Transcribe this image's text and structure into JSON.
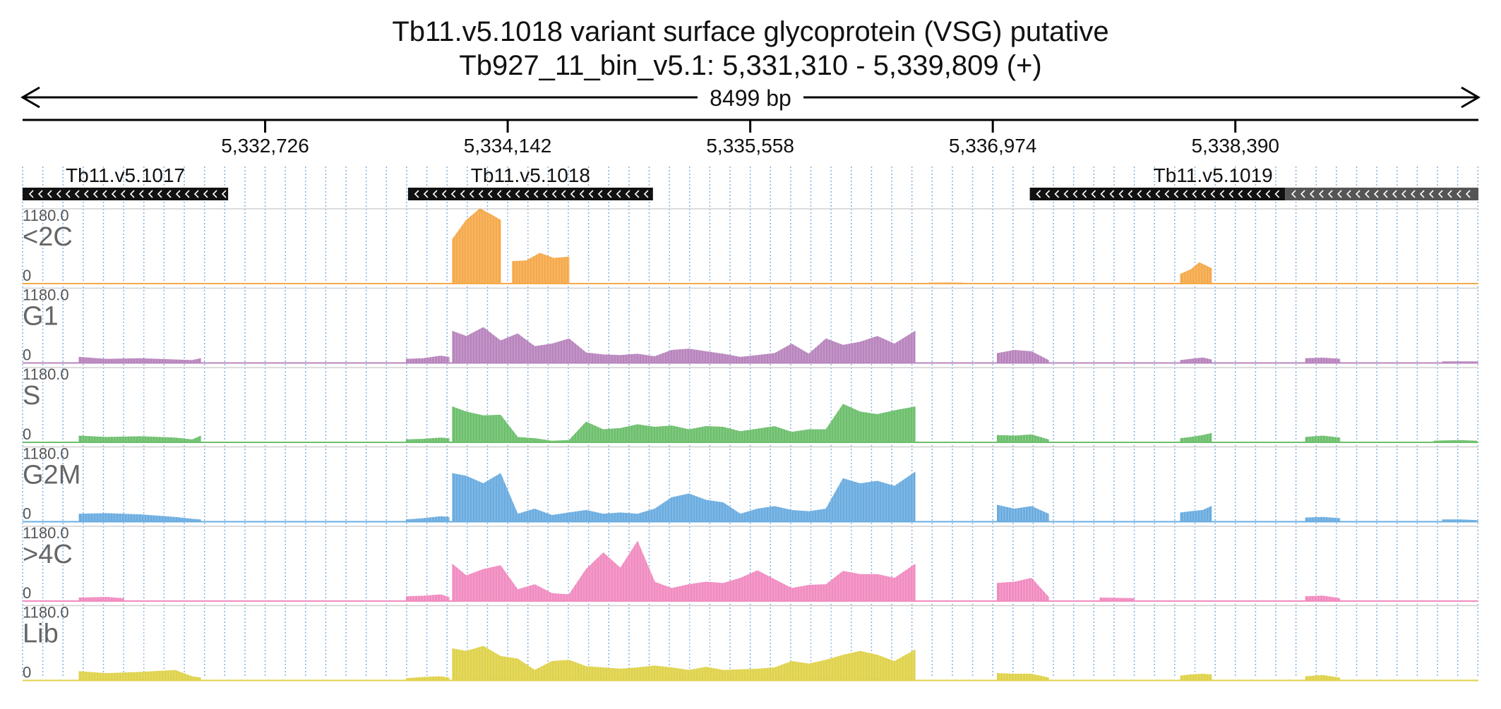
{
  "chart_data": {
    "type": "area",
    "title": "Tb11.v5.1018  variant surface glycoprotein (VSG)  putative",
    "subtitle": "Tb927_11_bin_v5.1: 5,331,310 - 5,339,809 (+)",
    "span_label": "8499 bp",
    "x_range": [
      5331310,
      5339809
    ],
    "x_ticks": [
      5332726,
      5334142,
      5335558,
      5336974,
      5338390
    ],
    "x_tick_labels": [
      "5,332,726",
      "5,334,142",
      "5,335,558",
      "5,336,974",
      "5,338,390"
    ],
    "genes": [
      {
        "name": "Tb11.v5.1017",
        "start": 5331310,
        "end": 5332510,
        "strand": "-"
      },
      {
        "name": "Tb11.v5.1018",
        "start": 5333560,
        "end": 5334990,
        "strand": "-"
      },
      {
        "name": "Tb11.v5.1019",
        "start": 5337190,
        "end": 5338680,
        "strand": "-"
      },
      {
        "name": "",
        "start": 5338680,
        "end": 5339809,
        "strand": "-"
      }
    ],
    "tracks": [
      {
        "name": "<2C",
        "ymax_label": "1180.0",
        "ymin_label": "0",
        "ylim": [
          0,
          1180
        ],
        "color": "#f5a94a",
        "segments": [
          {
            "x": [
              5333820,
              5333900,
              5333980,
              5334050,
              5334100
            ],
            "y": [
              700,
              1000,
              1180,
              1080,
              1000
            ]
          },
          {
            "x": [
              5334110,
              5334170,
              5334250,
              5334320,
              5334400
            ],
            "y": [
              0,
              0,
              0,
              0,
              0
            ]
          },
          {
            "x": [
              5334170,
              5334250,
              5334330,
              5334410,
              5334500
            ],
            "y": [
              350,
              360,
              480,
              400,
              420
            ]
          },
          {
            "x": [
              5336600,
              5336700,
              5336800
            ],
            "y": [
              10,
              12,
              10
            ]
          },
          {
            "x": [
              5338070,
              5338130,
              5338180,
              5338250
            ],
            "y": [
              150,
              220,
              330,
              240
            ]
          }
        ]
      },
      {
        "name": "G1",
        "ymax_label": "1180.0",
        "ymin_label": "0",
        "ylim": [
          0,
          1180
        ],
        "color": "#b884bd",
        "segments": [
          {
            "x": [
              5331640,
              5331800,
              5332000,
              5332200,
              5332300,
              5332350
            ],
            "y": [
              90,
              60,
              70,
              50,
              40,
              70
            ]
          },
          {
            "x": [
              5333550,
              5333650,
              5333750,
              5333800
            ],
            "y": [
              60,
              70,
              110,
              90
            ]
          },
          {
            "x": [
              5333820,
              5333900,
              5334000,
              5334100,
              5334200,
              5334300,
              5334400,
              5334500,
              5334600,
              5334700,
              5334800,
              5334900,
              5335000,
              5335100,
              5335200,
              5335300,
              5335400,
              5335500,
              5335600,
              5335700,
              5335800,
              5335900,
              5336000,
              5336100,
              5336200,
              5336300,
              5336400,
              5336520
            ],
            "y": [
              500,
              420,
              560,
              350,
              460,
              260,
              300,
              380,
              160,
              130,
              120,
              140,
              100,
              200,
              220,
              180,
              140,
              90,
              120,
              150,
              300,
              140,
              380,
              280,
              330,
              420,
              300,
              500
            ]
          },
          {
            "x": [
              5337000,
              5337100,
              5337200,
              5337300
            ],
            "y": [
              150,
              200,
              180,
              40
            ]
          },
          {
            "x": [
              5338070,
              5338130,
              5338200,
              5338250
            ],
            "y": [
              40,
              60,
              80,
              50
            ]
          },
          {
            "x": [
              5338800,
              5338900,
              5339000
            ],
            "y": [
              70,
              80,
              60
            ]
          },
          {
            "x": [
              5339600,
              5339700,
              5339800
            ],
            "y": [
              20,
              20,
              20
            ]
          }
        ]
      },
      {
        "name": "S",
        "ymax_label": "1180.0",
        "ymin_label": "0",
        "ylim": [
          0,
          1180
        ],
        "color": "#6cbf6c",
        "segments": [
          {
            "x": [
              5331640,
              5331800,
              5332000,
              5332200,
              5332300,
              5332350
            ],
            "y": [
              100,
              80,
              90,
              70,
              40,
              100
            ]
          },
          {
            "x": [
              5333550,
              5333650,
              5333750,
              5333800
            ],
            "y": [
              40,
              50,
              70,
              60
            ]
          },
          {
            "x": [
              5333820,
              5333900,
              5334000,
              5334100,
              5334200,
              5334300,
              5334400,
              5334500,
              5334600,
              5334700,
              5334800,
              5334900,
              5335000,
              5335100,
              5335200,
              5335300,
              5335400,
              5335500,
              5335600,
              5335700,
              5335800,
              5335900,
              5336000,
              5336100,
              5336200,
              5336300,
              5336400,
              5336520
            ],
            "y": [
              560,
              480,
              420,
              430,
              80,
              60,
              20,
              30,
              320,
              200,
              220,
              280,
              240,
              260,
              200,
              250,
              240,
              170,
              210,
              250,
              160,
              200,
              200,
              600,
              480,
              440,
              500,
              560
            ]
          },
          {
            "x": [
              5337000,
              5337100,
              5337200,
              5337300
            ],
            "y": [
              110,
              100,
              120,
              40
            ]
          },
          {
            "x": [
              5338070,
              5338130,
              5338200,
              5338250
            ],
            "y": [
              60,
              80,
              110,
              140
            ]
          },
          {
            "x": [
              5338800,
              5338900,
              5339000
            ],
            "y": [
              80,
              100,
              70
            ]
          },
          {
            "x": [
              5339550,
              5339700,
              5339800
            ],
            "y": [
              20,
              30,
              20
            ]
          }
        ]
      },
      {
        "name": "G2M",
        "ymax_label": "1180.0",
        "ymin_label": "0",
        "ylim": [
          0,
          1180
        ],
        "color": "#6aace0",
        "segments": [
          {
            "x": [
              5331640,
              5331800,
              5332000,
              5332200,
              5332300,
              5332350
            ],
            "y": [
              120,
              130,
              110,
              70,
              40,
              30
            ]
          },
          {
            "x": [
              5333550,
              5333650,
              5333750,
              5333800
            ],
            "y": [
              30,
              50,
              80,
              70
            ]
          },
          {
            "x": [
              5333820,
              5333900,
              5334000,
              5334100,
              5334200,
              5334300,
              5334400,
              5334500,
              5334600,
              5334700,
              5334800,
              5334900,
              5335000,
              5335100,
              5335200,
              5335300,
              5335400,
              5335500,
              5335600,
              5335700,
              5335800,
              5335900,
              5336000,
              5336100,
              5336200,
              5336300,
              5336400,
              5336520
            ],
            "y": [
              760,
              720,
              600,
              760,
              120,
              200,
              100,
              140,
              180,
              120,
              140,
              120,
              200,
              380,
              440,
              340,
              300,
              120,
              200,
              240,
              180,
              160,
              200,
              680,
              600,
              640,
              560,
              780
            ]
          },
          {
            "x": [
              5337000,
              5337100,
              5337200,
              5337300
            ],
            "y": [
              260,
              200,
              240,
              120
            ]
          },
          {
            "x": [
              5338070,
              5338130,
              5338200,
              5338250
            ],
            "y": [
              140,
              160,
              180,
              240
            ]
          },
          {
            "x": [
              5338800,
              5338900,
              5339000
            ],
            "y": [
              60,
              70,
              50
            ]
          },
          {
            "x": [
              5339600,
              5339700,
              5339800
            ],
            "y": [
              30,
              30,
              20
            ]
          }
        ]
      },
      {
        "name": ">4C",
        "ymax_label": "1180.0",
        "ymin_label": "0",
        "ylim": [
          0,
          1180
        ],
        "color": "#f18bc0",
        "segments": [
          {
            "x": [
              5331640,
              5331800,
              5331900
            ],
            "y": [
              50,
              60,
              40
            ]
          },
          {
            "x": [
              5333550,
              5333650,
              5333750,
              5333800
            ],
            "y": [
              70,
              80,
              100,
              60
            ]
          },
          {
            "x": [
              5333820,
              5333900,
              5334000,
              5334100,
              5334200,
              5334300,
              5334400,
              5334500,
              5334600,
              5334700,
              5334800,
              5334900,
              5335000,
              5335100,
              5335200,
              5335300,
              5335400,
              5335500,
              5335600,
              5335700,
              5335800,
              5335900,
              5336000,
              5336100,
              5336200,
              5336300,
              5336400,
              5336520
            ],
            "y": [
              580,
              400,
              500,
              560,
              180,
              260,
              120,
              100,
              500,
              760,
              520,
              940,
              300,
              200,
              260,
              300,
              280,
              360,
              480,
              340,
              200,
              250,
              260,
              470,
              420,
              420,
              360,
              580
            ]
          },
          {
            "x": [
              5337000,
              5337100,
              5337200,
              5337300
            ],
            "y": [
              280,
              300,
              360,
              60
            ]
          },
          {
            "x": [
              5337600,
              5337800
            ],
            "y": [
              50,
              40
            ]
          },
          {
            "x": [
              5338800,
              5338900,
              5339000
            ],
            "y": [
              70,
              80,
              40
            ]
          }
        ]
      },
      {
        "name": "Lib",
        "ymax_label": "1180.0",
        "ymin_label": "0",
        "ylim": [
          0,
          1180
        ],
        "color": "#dfd24a",
        "segments": [
          {
            "x": [
              5331640,
              5331800,
              5332000,
              5332200,
              5332300,
              5332350
            ],
            "y": [
              140,
              110,
              130,
              160,
              60,
              40
            ]
          },
          {
            "x": [
              5333550,
              5333650,
              5333750,
              5333800
            ],
            "y": [
              30,
              50,
              60,
              40
            ]
          },
          {
            "x": [
              5333820,
              5333900,
              5334000,
              5334100,
              5334200,
              5334300,
              5334400,
              5334500,
              5334600,
              5334700,
              5334800,
              5334900,
              5335000,
              5335100,
              5335200,
              5335300,
              5335400,
              5335500,
              5335600,
              5335700,
              5335800,
              5335900,
              5336000,
              5336100,
              5336200,
              5336300,
              5336400,
              5336520
            ],
            "y": [
              500,
              460,
              540,
              380,
              340,
              160,
              300,
              320,
              220,
              200,
              180,
              200,
              230,
              200,
              160,
              210,
              160,
              170,
              180,
              200,
              300,
              260,
              320,
              400,
              460,
              400,
              300,
              480
            ]
          },
          {
            "x": [
              5337000,
              5337100,
              5337200,
              5337300
            ],
            "y": [
              110,
              100,
              100,
              40
            ]
          },
          {
            "x": [
              5338070,
              5338130,
              5338200,
              5338250
            ],
            "y": [
              70,
              90,
              100,
              90
            ]
          },
          {
            "x": [
              5338800,
              5338900,
              5339000
            ],
            "y": [
              60,
              80,
              40
            ]
          }
        ]
      }
    ]
  }
}
